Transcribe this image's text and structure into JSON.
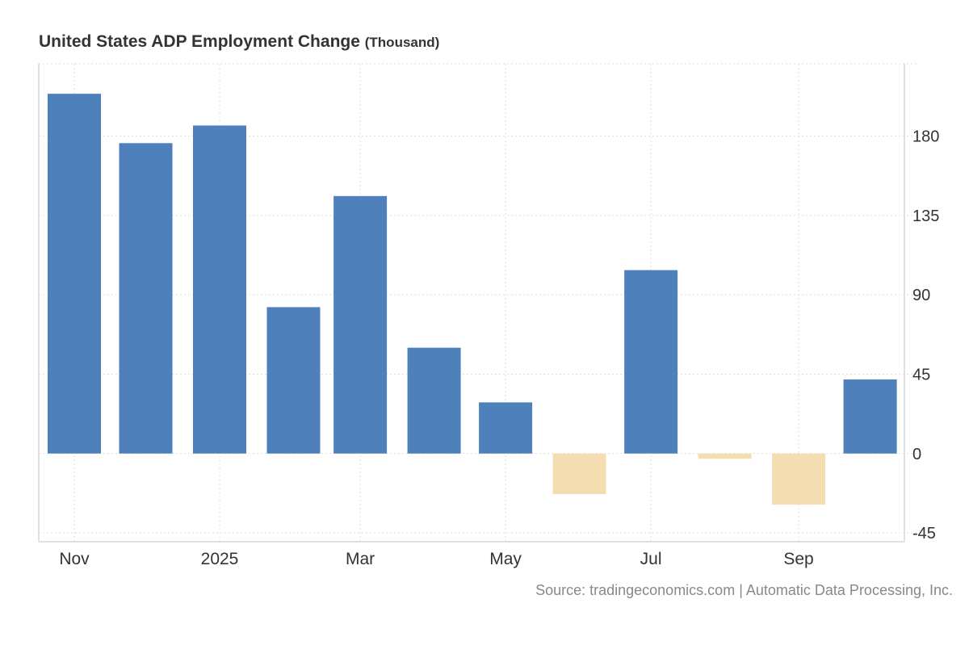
{
  "chart_data": {
    "type": "bar",
    "title": "United States ADP Employment Change",
    "unit": "(Thousand)",
    "x": [
      "2024-11",
      "2024-12",
      "2025-01",
      "2025-02",
      "2025-03",
      "2025-04",
      "2025-05",
      "2025-06",
      "2025-07",
      "2025-08",
      "2025-09",
      "2025-10"
    ],
    "values": [
      204,
      176,
      186,
      83,
      146,
      60,
      29,
      -23,
      104,
      -3,
      -29,
      42
    ],
    "x_ticks": [
      {
        "date": "2024-11",
        "label": "Nov"
      },
      {
        "date": "2025-01",
        "label": "2025"
      },
      {
        "date": "2025-03",
        "label": "Mar"
      },
      {
        "date": "2025-05",
        "label": "May"
      },
      {
        "date": "2025-07",
        "label": "Jul"
      },
      {
        "date": "2025-09",
        "label": "Sep"
      }
    ],
    "y_ticks": [
      -45,
      0,
      45,
      90,
      135,
      180
    ],
    "ylim": [
      -50,
      221
    ],
    "y_axis_position": "right",
    "grid": true,
    "colors": {
      "positive": "#4e80bc",
      "negative": "#f5ddb2"
    },
    "source": "Source: tradingeconomics.com | Automatic Data Processing, Inc."
  }
}
